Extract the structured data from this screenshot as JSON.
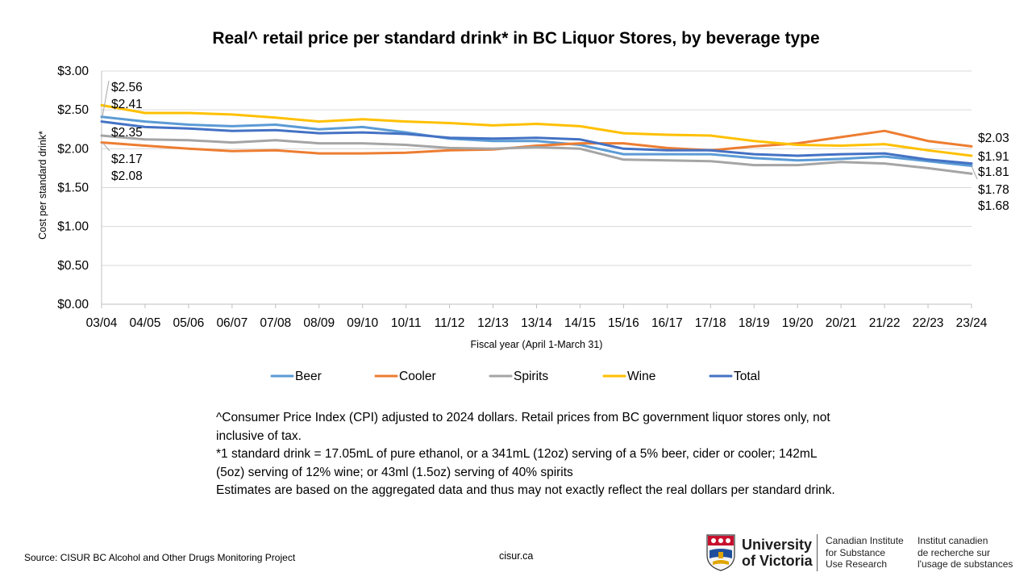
{
  "title": "Real^ retail price per standard drink* in BC Liquor Stores, by beverage type",
  "notes": [
    "^Consumer Price Index (CPI) adjusted to 2024 dollars. Retail prices from BC government liquor stores only, not inclusive of tax.",
    "*1 standard drink = 17.05mL of pure ethanol, or a 341mL (12oz) serving of a 5% beer, cider or cooler; 142mL (5oz) serving of 12% wine; or 43ml (1.5oz) serving of 40% spirits",
    "Estimates are based on the aggregated data and thus may not exactly reflect the real dollars per standard drink."
  ],
  "footer": {
    "source": "Source: CISUR BC Alcohol and Other Drugs Monitoring Project",
    "site": "cisur.ca",
    "university_line1": "University",
    "university_line2": "of Victoria",
    "institute_en": [
      "Canadian Institute",
      "for Substance",
      "Use Research"
    ],
    "institute_fr": [
      "Institut canadien",
      "de recherche sur",
      "l'usage de substances"
    ]
  },
  "chart_data": {
    "type": "line",
    "xlabel": "Fiscal year (April 1-March 31)",
    "ylabel": "Cost per standard drink*",
    "ylim": [
      0,
      3
    ],
    "yticks": [
      "$0.00",
      "$0.50",
      "$1.00",
      "$1.50",
      "$2.00",
      "$2.50",
      "$3.00"
    ],
    "categories": [
      "03/04",
      "04/05",
      "05/06",
      "06/07",
      "07/08",
      "08/09",
      "09/10",
      "10/11",
      "11/12",
      "12/13",
      "13/14",
      "14/15",
      "15/16",
      "16/17",
      "17/18",
      "18/19",
      "19/20",
      "20/21",
      "21/22",
      "22/23",
      "23/24"
    ],
    "grid": true,
    "legend_position": "bottom",
    "series": [
      {
        "name": "Beer",
        "color": "#5B9BD5",
        "values": [
          2.41,
          2.35,
          2.31,
          2.29,
          2.31,
          2.25,
          2.28,
          2.21,
          2.13,
          2.1,
          2.1,
          2.05,
          1.93,
          1.93,
          1.93,
          1.88,
          1.85,
          1.87,
          1.9,
          1.84,
          1.78
        ]
      },
      {
        "name": "Cooler",
        "color": "#ED7D31",
        "values": [
          2.08,
          2.04,
          2.0,
          1.97,
          1.98,
          1.94,
          1.94,
          1.95,
          1.98,
          1.99,
          2.04,
          2.07,
          2.07,
          2.01,
          1.98,
          2.03,
          2.07,
          2.15,
          2.23,
          2.1,
          2.03
        ]
      },
      {
        "name": "Spirits",
        "color": "#A5A5A5",
        "values": [
          2.17,
          2.12,
          2.11,
          2.08,
          2.11,
          2.07,
          2.07,
          2.05,
          2.01,
          2.0,
          2.02,
          2.0,
          1.86,
          1.85,
          1.84,
          1.79,
          1.79,
          1.83,
          1.81,
          1.75,
          1.68
        ]
      },
      {
        "name": "Wine",
        "color": "#FFC000",
        "values": [
          2.56,
          2.46,
          2.46,
          2.44,
          2.4,
          2.35,
          2.38,
          2.35,
          2.33,
          2.3,
          2.32,
          2.29,
          2.2,
          2.18,
          2.17,
          2.1,
          2.05,
          2.04,
          2.06,
          1.98,
          1.91
        ]
      },
      {
        "name": "Total",
        "color": "#4472C4",
        "values": [
          2.35,
          2.28,
          2.26,
          2.23,
          2.24,
          2.2,
          2.21,
          2.19,
          2.14,
          2.13,
          2.14,
          2.12,
          2.0,
          1.98,
          1.98,
          1.93,
          1.91,
          1.93,
          1.94,
          1.86,
          1.81
        ]
      }
    ],
    "start_labels": [
      "$2.56",
      "$2.41",
      "$2.35",
      "$2.17",
      "$2.08"
    ],
    "end_labels": [
      "$2.03",
      "$1.91",
      "$1.81",
      "$1.78",
      "$1.68"
    ]
  }
}
